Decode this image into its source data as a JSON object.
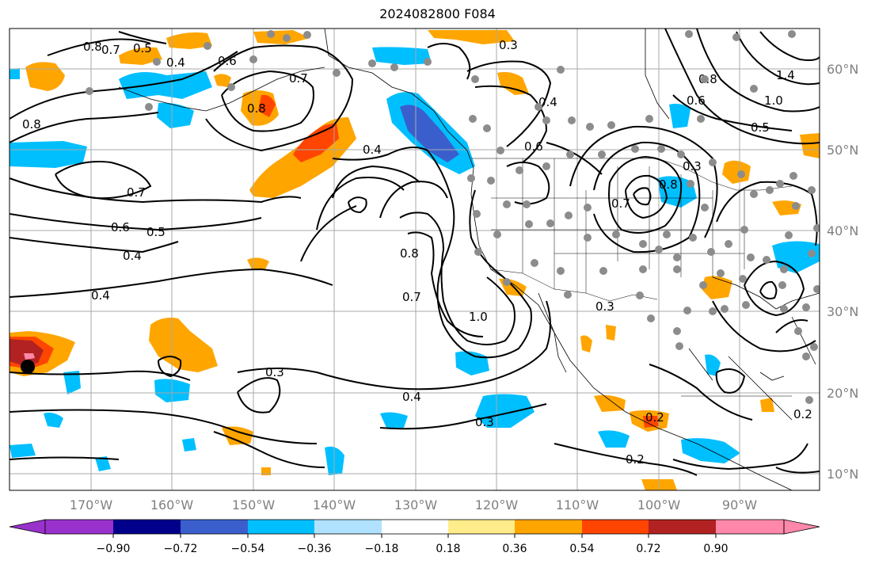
{
  "title": "2024082800 F084",
  "map": {
    "lon_labels": [
      "170°W",
      "160°W",
      "150°W",
      "140°W",
      "130°W",
      "120°W",
      "110°W",
      "100°W",
      "90°W"
    ],
    "lat_labels": [
      "60°N",
      "50°N",
      "40°N",
      "30°N",
      "20°N",
      "10°N"
    ],
    "contour_labels": [
      "0.8",
      "0.7",
      "0.5",
      "0.4",
      "0.6",
      "0.7",
      "0.8",
      "0.8",
      "0.7",
      "0.6",
      "0.5",
      "0.4",
      "0.4",
      "0.4",
      "0.8",
      "0.7",
      "1.0",
      "0.3",
      "0.4",
      "0.3",
      "0.2",
      "0.3",
      "0.4",
      "0.6",
      "0.7",
      "0.8",
      "0.3",
      "0.6",
      "0.5",
      "1.0",
      "0.8",
      "1.4",
      "0.3",
      "0.2",
      "0.2"
    ],
    "colors": {
      "purple": "#9932CC",
      "navy": "#00008B",
      "blue": "#3A5FCD",
      "deepskyblue": "#00BFFF",
      "lightblue": "#B0E2FF",
      "white": "#FFFFFF",
      "yellow": "#FFEC8B",
      "orange": "#FFA500",
      "orangered": "#FF4500",
      "firebrick": "#B22222",
      "pink": "#FF88AA"
    }
  },
  "colorbar": {
    "tick_labels": [
      "−0.90",
      "−0.72",
      "−0.54",
      "−0.36",
      "−0.18",
      "0.18",
      "0.36",
      "0.54",
      "0.72",
      "0.90"
    ],
    "bins": [
      "#9932CC",
      "#00008B",
      "#3A5FCD",
      "#00BFFF",
      "#B0E2FF",
      "#FFFFFF",
      "#FFEC8B",
      "#FFA500",
      "#FF4500",
      "#B22222",
      "#FF88AA"
    ]
  }
}
